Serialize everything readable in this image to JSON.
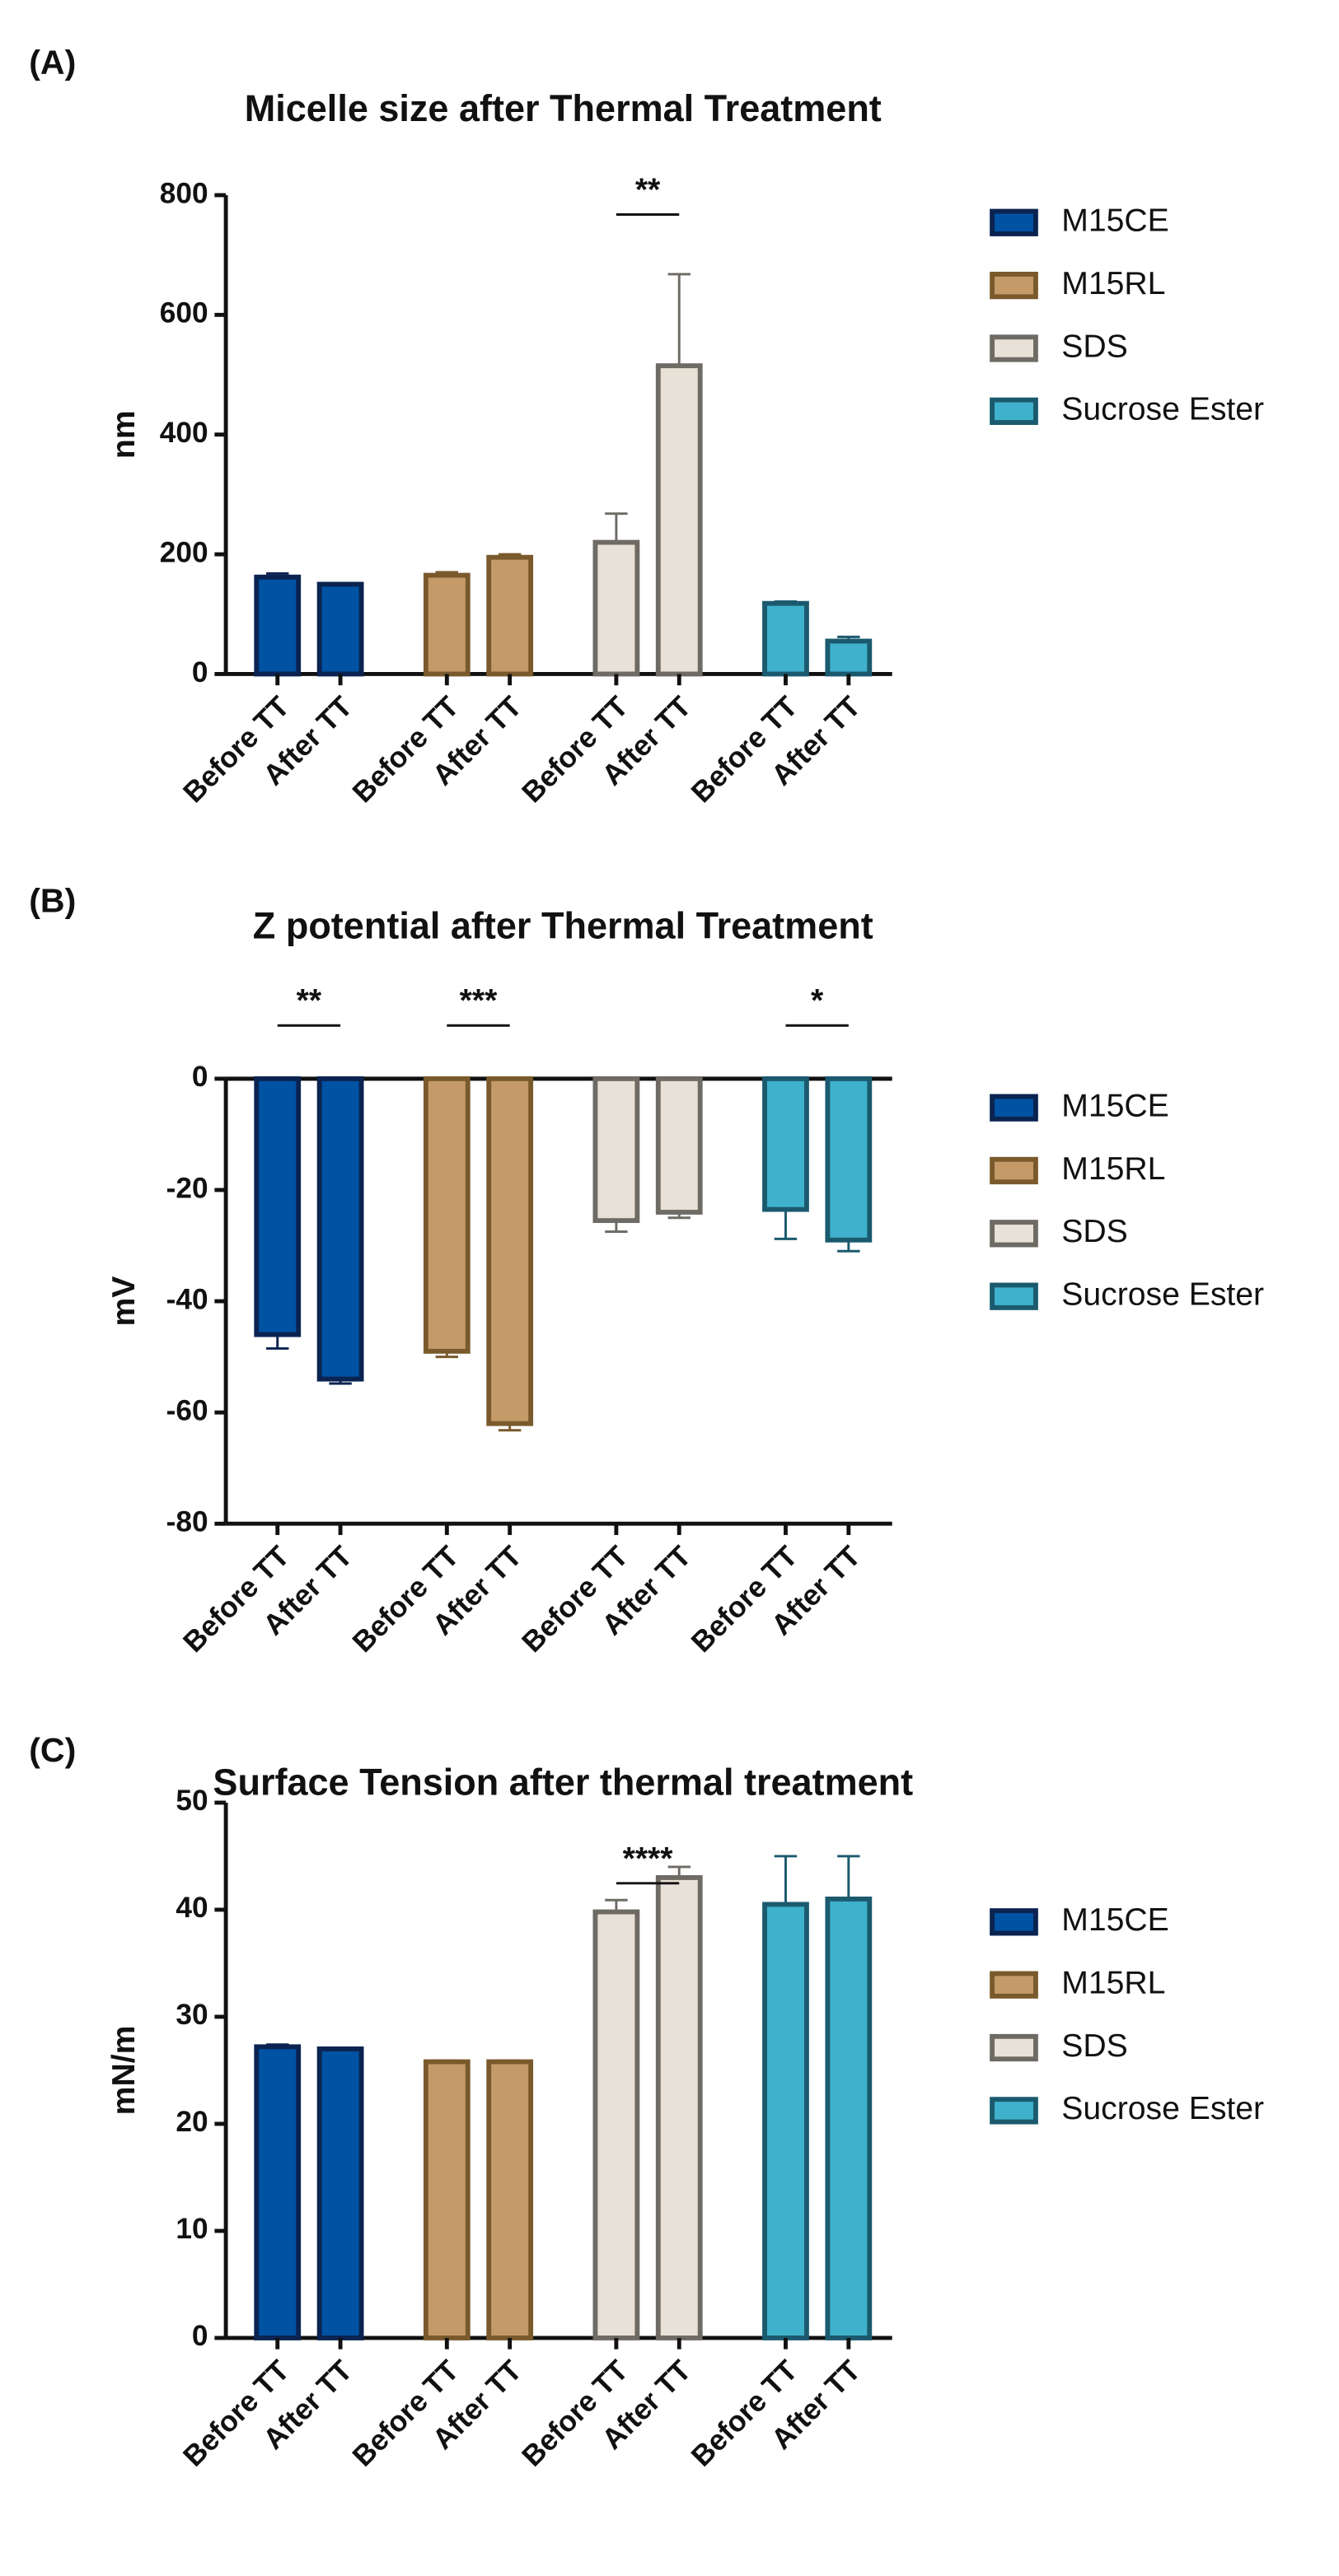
{
  "chart_data": [
    {
      "type": "bar",
      "panel": "(A)",
      "title": "Micelle size after Thermal Treatment",
      "y_label": "nm",
      "categories": [
        "Before TT",
        "After TT"
      ],
      "series": [
        {
          "name": "M15CE",
          "color": "#0052a3",
          "edge_color": "#0b2350",
          "values": [
            162,
            150
          ],
          "errors": [
            6,
            2
          ]
        },
        {
          "name": "M15RL",
          "color": "#c49a68",
          "edge_color": "#7a5a2c",
          "values": [
            165,
            195
          ],
          "errors": [
            5,
            5
          ]
        },
        {
          "name": "SDS",
          "color": "#e8e1d7",
          "edge_color": "#6e6a64",
          "values": [
            220,
            515
          ],
          "errors": [
            48,
            153
          ]
        },
        {
          "name": "Sucrose Ester",
          "color": "#3fb1cc",
          "edge_color": "#1b5a6e",
          "values": [
            118,
            55
          ],
          "errors": [
            3,
            7
          ]
        }
      ],
      "annotations": [
        {
          "text": "**",
          "group": "SDS"
        }
      ],
      "ylim": [
        0,
        800
      ],
      "yticks": [
        0,
        200,
        400,
        600,
        800
      ]
    },
    {
      "type": "bar",
      "panel": "(B)",
      "title": "Z potential after Thermal Treatment",
      "y_label": "mV",
      "categories": [
        "Before TT",
        "After TT"
      ],
      "series": [
        {
          "name": "M15CE",
          "color": "#0052a3",
          "edge_color": "#0b2350",
          "values": [
            -46,
            -54
          ],
          "errors": [
            2.5,
            0.8
          ]
        },
        {
          "name": "M15RL",
          "color": "#c49a68",
          "edge_color": "#7a5a2c",
          "values": [
            -49,
            -62
          ],
          "errors": [
            1,
            1.2
          ]
        },
        {
          "name": "SDS",
          "color": "#e8e1d7",
          "edge_color": "#6e6a64",
          "values": [
            -25.5,
            -24
          ],
          "errors": [
            2,
            1
          ]
        },
        {
          "name": "Sucrose Ester",
          "color": "#3fb1cc",
          "edge_color": "#1b5a6e",
          "values": [
            -23.5,
            -29
          ],
          "errors": [
            5.3,
            2
          ]
        }
      ],
      "annotations": [
        {
          "text": "**",
          "group": "M15CE"
        },
        {
          "text": "***",
          "group": "M15RL"
        },
        {
          "text": "*",
          "group": "Sucrose Ester"
        }
      ],
      "ylim": [
        -80,
        0
      ],
      "yticks": [
        0,
        -20,
        -40,
        -60,
        -80
      ]
    },
    {
      "type": "bar",
      "panel": "(C)",
      "title": "Surface Tension after thermal treatment",
      "y_label": "mN/m",
      "categories": [
        "Before TT",
        "After TT"
      ],
      "series": [
        {
          "name": "M15CE",
          "color": "#0052a3",
          "edge_color": "#0b2350",
          "values": [
            27.2,
            27
          ],
          "errors": [
            0.2,
            0.1
          ]
        },
        {
          "name": "M15RL",
          "color": "#c49a68",
          "edge_color": "#7a5a2c",
          "values": [
            25.8,
            25.8
          ],
          "errors": [
            0.1,
            0.1
          ]
        },
        {
          "name": "SDS",
          "color": "#e8e1d7",
          "edge_color": "#6e6a64",
          "values": [
            39.8,
            43
          ],
          "errors": [
            1.1,
            1
          ]
        },
        {
          "name": "Sucrose Ester",
          "color": "#3fb1cc",
          "edge_color": "#1b5a6e",
          "values": [
            40.5,
            41
          ],
          "errors": [
            4.5,
            4
          ]
        }
      ],
      "annotations": [
        {
          "text": "****",
          "group": "SDS"
        }
      ],
      "ylim": [
        0,
        50
      ],
      "yticks": [
        0,
        10,
        20,
        30,
        40,
        50
      ]
    }
  ]
}
